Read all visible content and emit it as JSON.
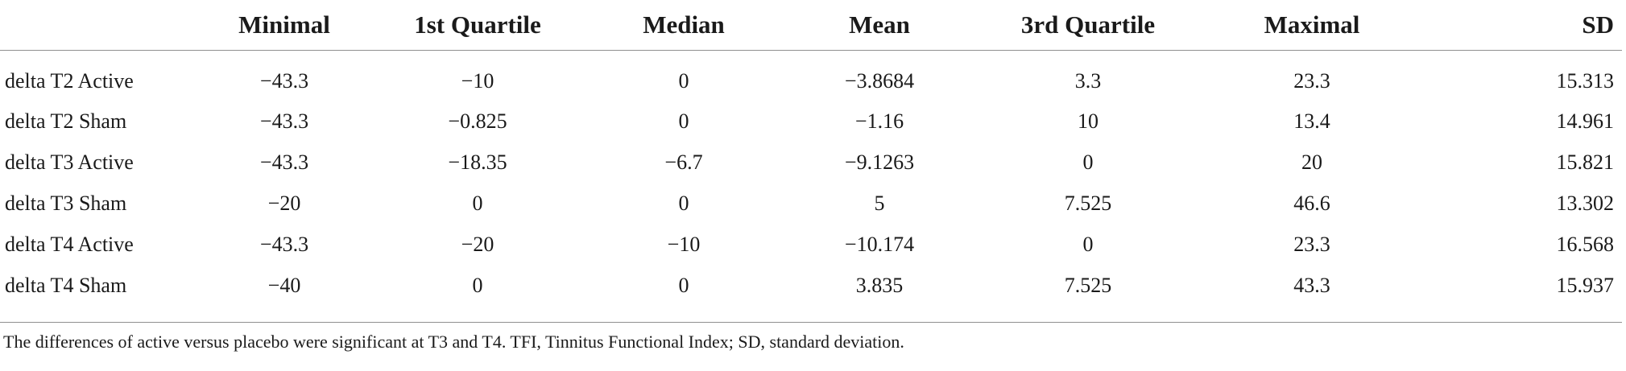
{
  "table": {
    "columns": [
      "",
      "Minimal",
      "1st Quartile",
      "Median",
      "Mean",
      "3rd Quartile",
      "Maximal",
      "SD"
    ],
    "rows": [
      [
        "delta T2 Active",
        "−43.3",
        "−10",
        "0",
        "−3.8684",
        "3.3",
        "23.3",
        "15.313"
      ],
      [
        "delta T2 Sham",
        "−43.3",
        "−0.825",
        "0",
        "−1.16",
        "10",
        "13.4",
        "14.961"
      ],
      [
        "delta T3 Active",
        "−43.3",
        "−18.35",
        "−6.7",
        "−9.1263",
        "0",
        "20",
        "15.821"
      ],
      [
        "delta T3 Sham",
        "−20",
        "0",
        "0",
        "5",
        "7.525",
        "46.6",
        "13.302"
      ],
      [
        "delta T4 Active",
        "−43.3",
        "−20",
        "−10",
        "−10.174",
        "0",
        "23.3",
        "16.568"
      ],
      [
        "delta T4 Sham",
        "−40",
        "0",
        "0",
        "3.835",
        "7.525",
        "43.3",
        "15.937"
      ]
    ]
  },
  "footnote": "The differences of active versus placebo were significant at T3 and T4. TFI, Tinnitus Functional Index; SD, standard deviation."
}
